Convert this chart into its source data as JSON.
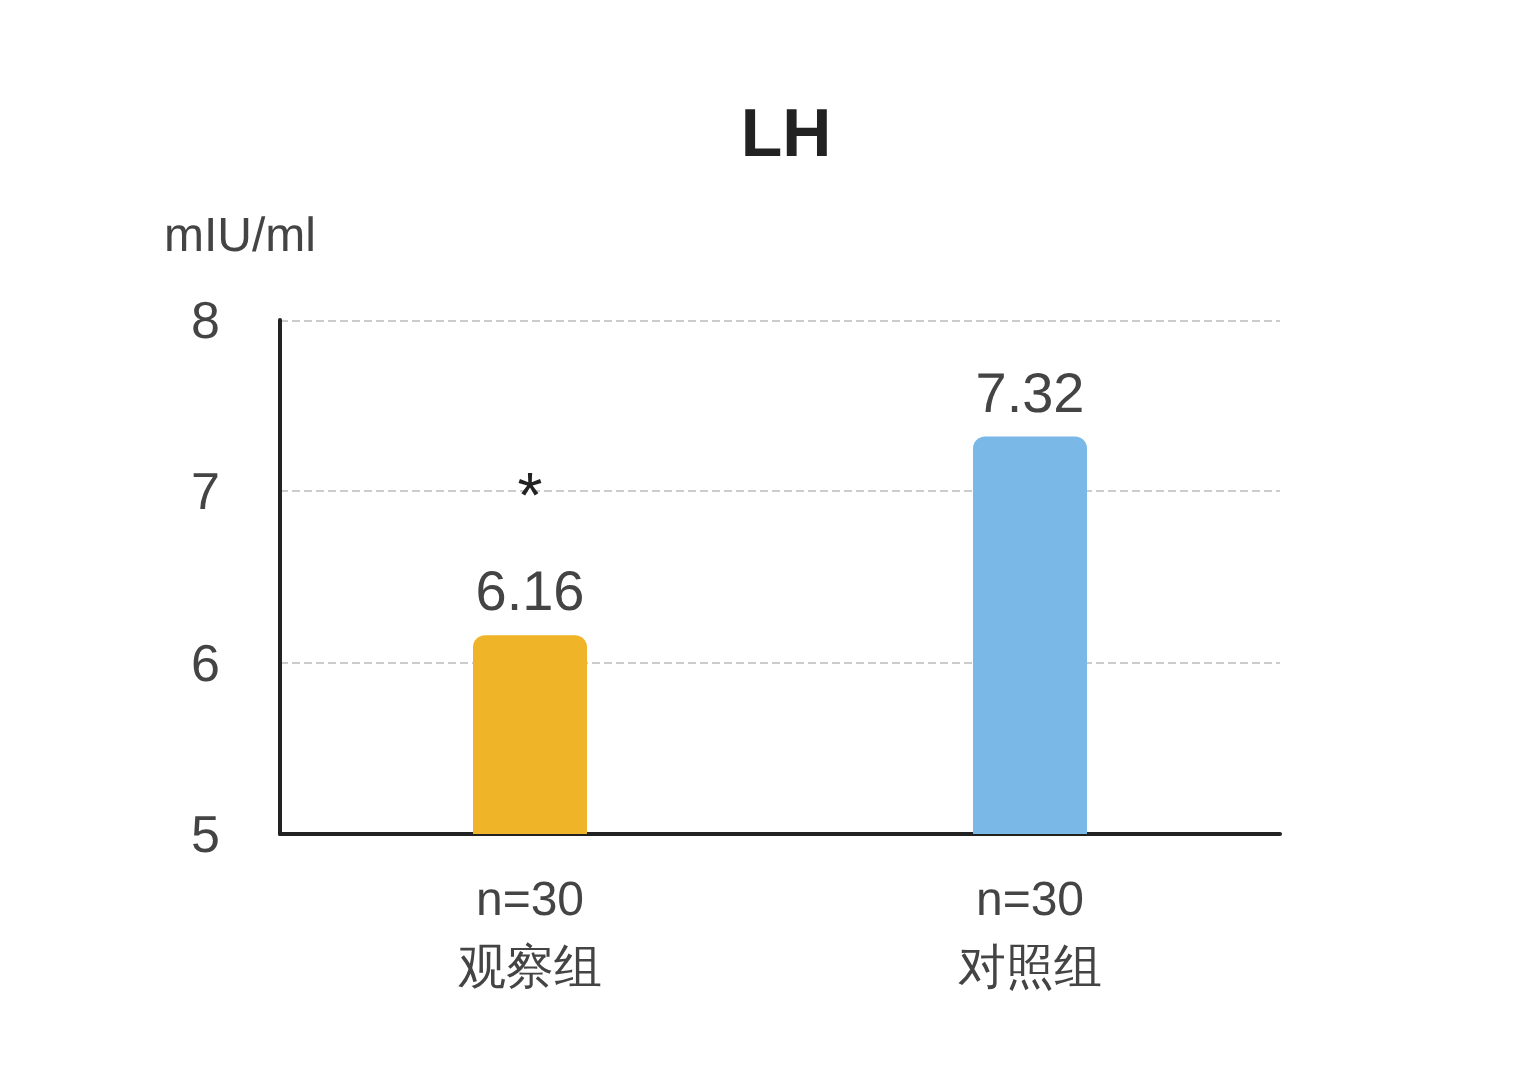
{
  "chart_data": {
    "type": "bar",
    "title": "LH",
    "ylabel": "mIU/ml",
    "categories": [
      "n=30\n观察组",
      "n=30\n对照组"
    ],
    "values": [
      6.16,
      7.32
    ],
    "colors": [
      "#f0b429",
      "#7ab8e8"
    ],
    "ylim": [
      5,
      8
    ],
    "yticks": [
      5,
      6,
      7,
      8
    ],
    "grid": "y",
    "data_labels": true,
    "annotations": [
      {
        "text": "*",
        "x": "n=30\n观察组",
        "y": 6.16
      }
    ]
  }
}
